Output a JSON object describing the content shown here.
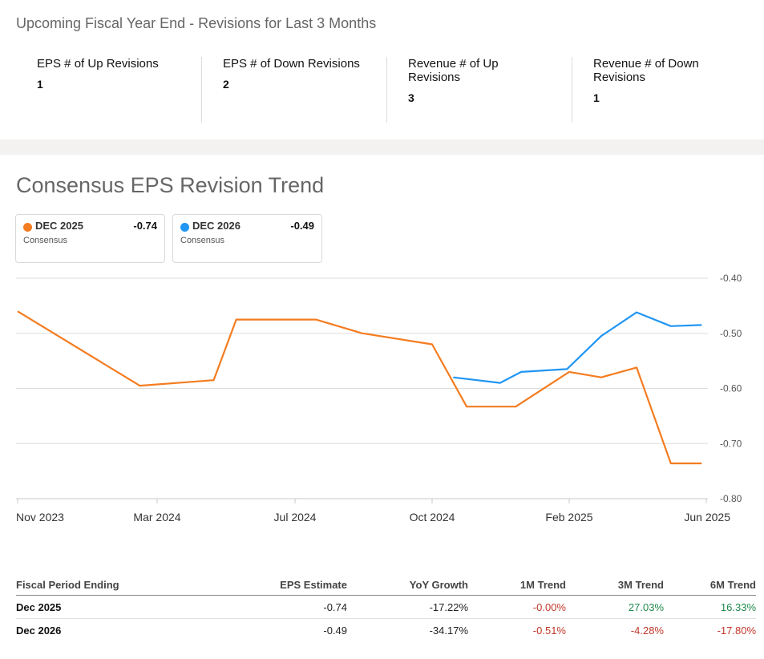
{
  "revisions": {
    "title": "Upcoming Fiscal Year End - Revisions for Last 3 Months",
    "stats": [
      {
        "label": "EPS # of Up Revisions",
        "value": "1"
      },
      {
        "label": "EPS # of Down Revisions",
        "value": "2"
      },
      {
        "label": "Revenue # of Up Revisions",
        "value": "3"
      },
      {
        "label": "Revenue # of Down Revisions",
        "value": "1"
      }
    ]
  },
  "chart_title": "Consensus EPS Revision Trend",
  "legend": [
    {
      "name": "DEC 2025",
      "value": "-0.74",
      "sub": "Consensus",
      "color": "#f47c20"
    },
    {
      "name": "DEC 2026",
      "value": "-0.49",
      "sub": "Consensus",
      "color": "#2196f3"
    }
  ],
  "chart_data": {
    "type": "line",
    "title": "Consensus EPS Revision Trend",
    "x_ticks": [
      "Nov 2023",
      "Mar 2024",
      "Jul 2024",
      "Oct 2024",
      "Feb 2025",
      "Jun 2025"
    ],
    "y_ticks": [
      "-0.40",
      "-0.50",
      "-0.60",
      "-0.70",
      "-0.80"
    ],
    "ylim": [
      -0.8,
      -0.4
    ],
    "grid": true,
    "series": [
      {
        "name": "DEC 2025",
        "color": "#f47c20",
        "points": [
          [
            "2023-11-01",
            -0.46
          ],
          [
            "2024-02-15",
            -0.595
          ],
          [
            "2024-04-20",
            -0.585
          ],
          [
            "2024-05-10",
            -0.475
          ],
          [
            "2024-07-15",
            -0.475
          ],
          [
            "2024-08-15",
            -0.5
          ],
          [
            "2024-10-01",
            -0.52
          ],
          [
            "2024-11-01",
            -0.633
          ],
          [
            "2024-12-15",
            -0.633
          ],
          [
            "2025-02-01",
            -0.57
          ],
          [
            "2025-03-01",
            -0.58
          ],
          [
            "2025-04-01",
            -0.562
          ],
          [
            "2025-05-01",
            -0.736
          ],
          [
            "2025-05-28",
            -0.736
          ]
        ]
      },
      {
        "name": "DEC 2026",
        "color": "#2196f3",
        "points": [
          [
            "2024-10-20",
            -0.58
          ],
          [
            "2024-12-01",
            -0.59
          ],
          [
            "2024-12-20",
            -0.57
          ],
          [
            "2025-01-30",
            -0.565
          ],
          [
            "2025-03-01",
            -0.505
          ],
          [
            "2025-04-01",
            -0.462
          ],
          [
            "2025-05-01",
            -0.487
          ],
          [
            "2025-05-28",
            -0.485
          ]
        ]
      }
    ]
  },
  "table": {
    "headers": [
      "Fiscal Period Ending",
      "EPS Estimate",
      "YoY Growth",
      "1M Trend",
      "3M Trend",
      "6M Trend"
    ],
    "rows": [
      {
        "cells": [
          "Dec 2025",
          "-0.74",
          "-17.22%",
          "-0.00%",
          "27.03%",
          "16.33%"
        ]
      },
      {
        "cells": [
          "Dec 2026",
          "-0.49",
          "-34.17%",
          "-0.51%",
          "-4.28%",
          "-17.80%"
        ]
      }
    ]
  },
  "colors": {
    "negative": "#c0392b",
    "positive": "#1e8a4c",
    "grid": "#dddddd",
    "axis_text": "#555555"
  }
}
